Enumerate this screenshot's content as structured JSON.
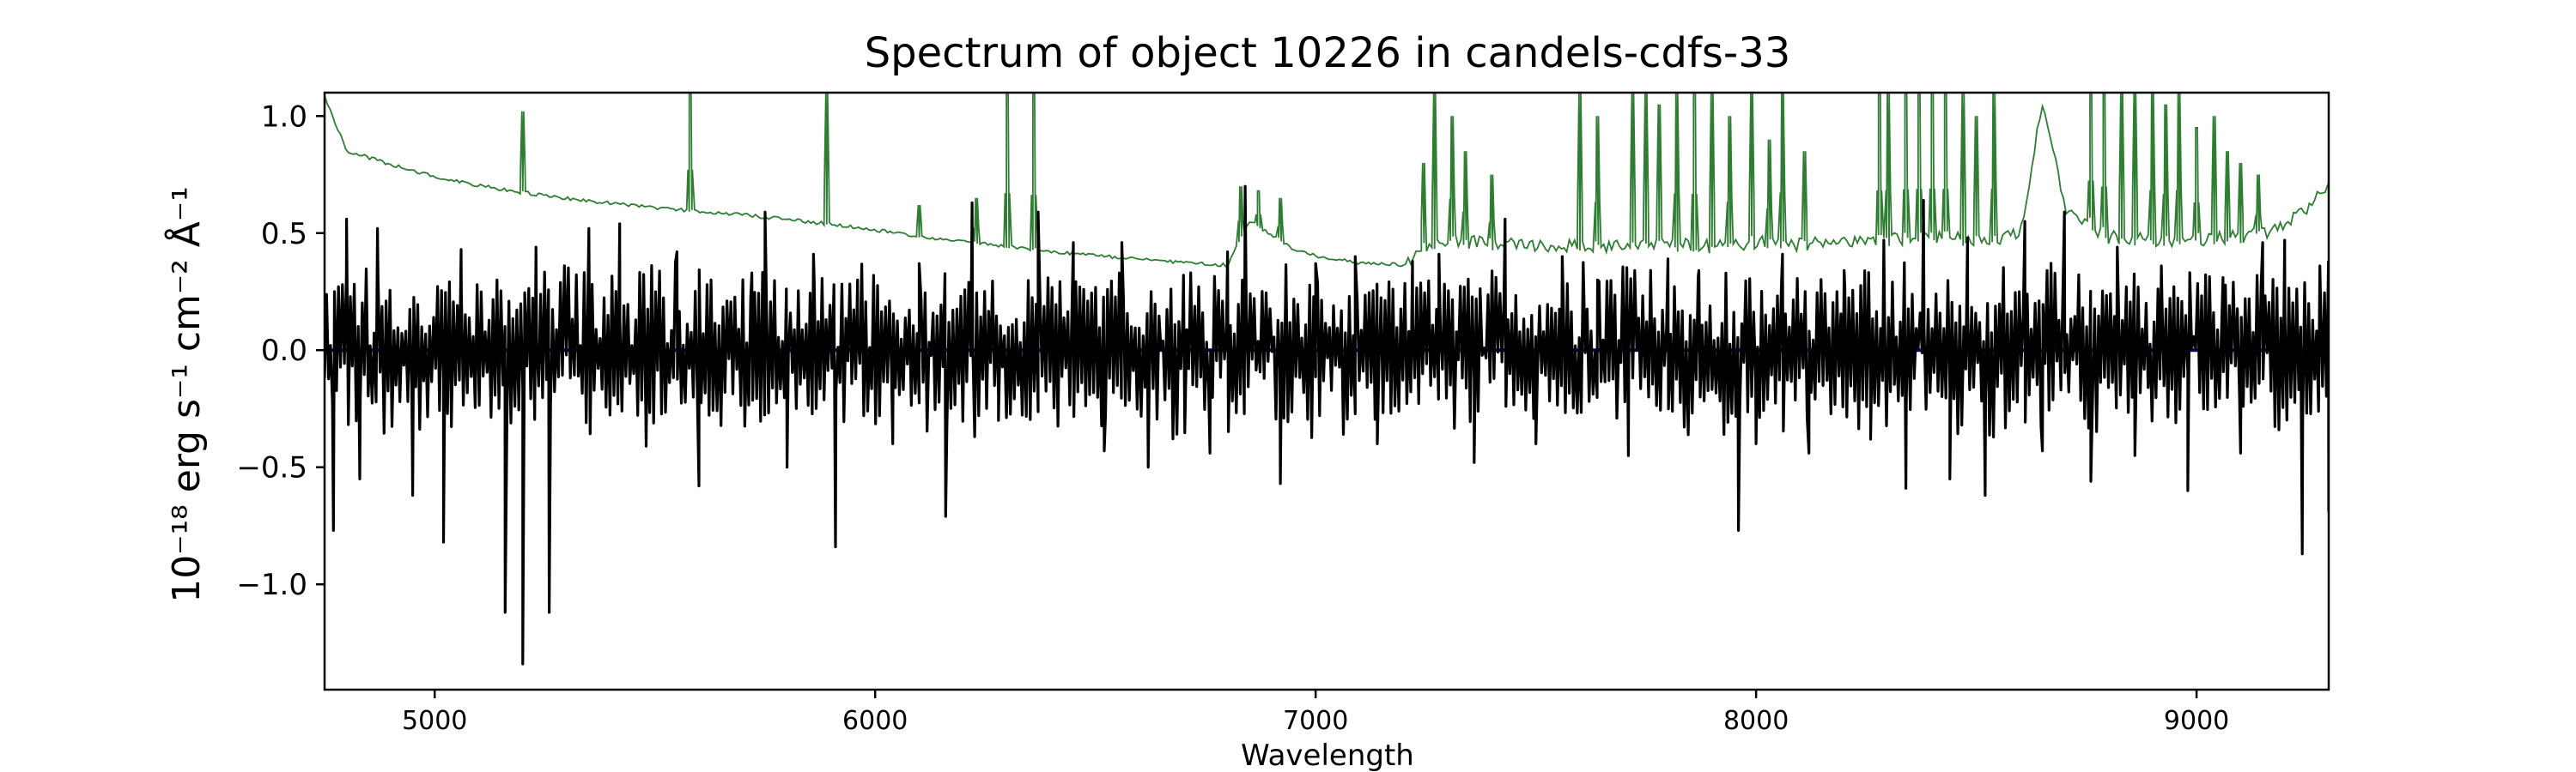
{
  "chart_data": {
    "type": "line",
    "title": "Spectrum of object 10226 in candels-cdfs-33",
    "xlabel": "Wavelength",
    "ylabel": "10⁻¹⁸ erg s⁻¹ cm⁻² Å⁻¹",
    "xlim": [
      4750,
      9300
    ],
    "ylim": [
      -1.45,
      1.1
    ],
    "xticks": [
      5000,
      6000,
      7000,
      8000,
      9000
    ],
    "xtick_labels": [
      "5000",
      "6000",
      "7000",
      "8000",
      "9000"
    ],
    "yticks": [
      -1.0,
      -0.5,
      0.0,
      0.5,
      1.0
    ],
    "ytick_labels": [
      "−1.0",
      "−0.5",
      "0.0",
      "0.5",
      "1.0"
    ],
    "grid": false,
    "colors": {
      "flux": "#000000",
      "error": "#2e7d32",
      "zero": "#0000aa"
    },
    "zero_line_y": 0.0,
    "error_continuum": [
      [
        4750,
        1.08
      ],
      [
        4800,
        0.85
      ],
      [
        4900,
        0.79
      ],
      [
        5000,
        0.74
      ],
      [
        5100,
        0.7
      ],
      [
        5200,
        0.67
      ],
      [
        5300,
        0.645
      ],
      [
        5400,
        0.625
      ],
      [
        5500,
        0.605
      ],
      [
        5600,
        0.59
      ],
      [
        5700,
        0.575
      ],
      [
        5800,
        0.555
      ],
      [
        5900,
        0.535
      ],
      [
        6000,
        0.51
      ],
      [
        6100,
        0.485
      ],
      [
        6200,
        0.46
      ],
      [
        6300,
        0.44
      ],
      [
        6400,
        0.42
      ],
      [
        6500,
        0.4
      ],
      [
        6600,
        0.385
      ],
      [
        6700,
        0.37
      ],
      [
        6800,
        0.36
      ],
      [
        6850,
        0.55
      ],
      [
        6950,
        0.43
      ],
      [
        7000,
        0.4
      ],
      [
        7100,
        0.37
      ],
      [
        7200,
        0.36
      ],
      [
        7250,
        0.42
      ],
      [
        7300,
        0.46
      ],
      [
        7400,
        0.44
      ],
      [
        7500,
        0.43
      ],
      [
        7600,
        0.44
      ],
      [
        7700,
        0.43
      ],
      [
        7800,
        0.44
      ],
      [
        7900,
        0.43
      ],
      [
        8000,
        0.45
      ],
      [
        8100,
        0.44
      ],
      [
        8200,
        0.45
      ],
      [
        8300,
        0.46
      ],
      [
        8400,
        0.47
      ],
      [
        8500,
        0.46
      ],
      [
        8600,
        0.48
      ],
      [
        8650,
        1.05
      ],
      [
        8700,
        0.6
      ],
      [
        8800,
        0.47
      ],
      [
        8900,
        0.46
      ],
      [
        9000,
        0.46
      ],
      [
        9100,
        0.47
      ],
      [
        9200,
        0.51
      ],
      [
        9300,
        0.69
      ]
    ],
    "error_spikes": [
      [
        5200,
        1.02
      ],
      [
        5580,
        1.1
      ],
      [
        5890,
        1.1
      ],
      [
        6300,
        1.1
      ],
      [
        6360,
        1.1
      ],
      [
        6100,
        0.62
      ],
      [
        6230,
        0.65
      ],
      [
        6830,
        0.7
      ],
      [
        6870,
        0.68
      ],
      [
        6920,
        0.65
      ],
      [
        7245,
        0.8
      ],
      [
        7270,
        1.1
      ],
      [
        7310,
        1.0
      ],
      [
        7340,
        0.85
      ],
      [
        7400,
        0.75
      ],
      [
        7600,
        1.1
      ],
      [
        7640,
        1.0
      ],
      [
        7720,
        1.1
      ],
      [
        7750,
        1.1
      ],
      [
        7780,
        1.05
      ],
      [
        7820,
        1.1
      ],
      [
        7860,
        1.1
      ],
      [
        7900,
        1.1
      ],
      [
        7940,
        1.0
      ],
      [
        7990,
        1.1
      ],
      [
        8030,
        0.9
      ],
      [
        8060,
        1.1
      ],
      [
        8110,
        0.85
      ],
      [
        8280,
        1.1
      ],
      [
        8300,
        1.1
      ],
      [
        8340,
        1.1
      ],
      [
        8370,
        1.1
      ],
      [
        8400,
        1.1
      ],
      [
        8430,
        1.1
      ],
      [
        8470,
        1.1
      ],
      [
        8500,
        1.0
      ],
      [
        8540,
        1.1
      ],
      [
        8760,
        1.1
      ],
      [
        8790,
        1.1
      ],
      [
        8830,
        1.1
      ],
      [
        8860,
        1.1
      ],
      [
        8900,
        1.1
      ],
      [
        8930,
        1.05
      ],
      [
        8960,
        1.1
      ],
      [
        9000,
        0.95
      ],
      [
        9040,
        1.0
      ],
      [
        9070,
        0.85
      ],
      [
        9100,
        0.8
      ],
      [
        9140,
        0.75
      ]
    ],
    "flux_extremes": [
      [
        4770,
        -0.77
      ],
      [
        4800,
        0.56
      ],
      [
        4830,
        -0.55
      ],
      [
        4870,
        0.52
      ],
      [
        4950,
        -0.62
      ],
      [
        5020,
        -0.82
      ],
      [
        5060,
        0.43
      ],
      [
        5160,
        -1.12
      ],
      [
        5200,
        -1.34
      ],
      [
        5230,
        0.44
      ],
      [
        5260,
        -1.12
      ],
      [
        5350,
        0.52
      ],
      [
        5420,
        0.54
      ],
      [
        5480,
        -0.41
      ],
      [
        5550,
        0.42
      ],
      [
        5600,
        -0.58
      ],
      [
        5720,
        0.33
      ],
      [
        5750,
        0.59
      ],
      [
        5800,
        -0.5
      ],
      [
        5860,
        0.41
      ],
      [
        5910,
        -0.84
      ],
      [
        5960,
        0.3
      ],
      [
        6040,
        -0.4
      ],
      [
        6100,
        0.37
      ],
      [
        6160,
        -0.71
      ],
      [
        6220,
        0.63
      ],
      [
        6280,
        -0.3
      ],
      [
        6370,
        0.59
      ],
      [
        6450,
        0.46
      ],
      [
        6520,
        -0.43
      ],
      [
        6560,
        0.46
      ],
      [
        6620,
        -0.5
      ],
      [
        6700,
        0.32
      ],
      [
        6760,
        -0.44
      ],
      [
        6800,
        0.42
      ],
      [
        6840,
        0.7
      ],
      [
        6920,
        -0.57
      ],
      [
        7000,
        0.37
      ],
      [
        7090,
        0.4
      ],
      [
        7140,
        -0.4
      ],
      [
        7220,
        0.38
      ],
      [
        7280,
        0.41
      ],
      [
        7360,
        -0.48
      ],
      [
        7430,
        0.56
      ],
      [
        7500,
        -0.4
      ],
      [
        7560,
        0.4
      ],
      [
        7640,
        0.3
      ],
      [
        7710,
        -0.45
      ],
      [
        7800,
        0.39
      ],
      [
        7870,
        0.34
      ],
      [
        7960,
        -0.77
      ],
      [
        8000,
        -0.4
      ],
      [
        8060,
        0.41
      ],
      [
        8120,
        -0.44
      ],
      [
        8200,
        0.34
      ],
      [
        8260,
        -0.38
      ],
      [
        8290,
        0.47
      ],
      [
        8340,
        -0.59
      ],
      [
        8380,
        0.64
      ],
      [
        8440,
        -0.55
      ],
      [
        8480,
        0.48
      ],
      [
        8520,
        -0.62
      ],
      [
        8610,
        0.55
      ],
      [
        8650,
        -0.43
      ],
      [
        8700,
        0.59
      ],
      [
        8760,
        -0.56
      ],
      [
        8820,
        0.44
      ],
      [
        8860,
        -0.45
      ],
      [
        8920,
        0.36
      ],
      [
        8980,
        -0.6
      ],
      [
        9060,
        0.31
      ],
      [
        9100,
        -0.44
      ],
      [
        9150,
        0.46
      ],
      [
        9200,
        0.47
      ],
      [
        9240,
        -0.87
      ],
      [
        9280,
        0.36
      ],
      [
        9300,
        -0.69
      ]
    ]
  }
}
